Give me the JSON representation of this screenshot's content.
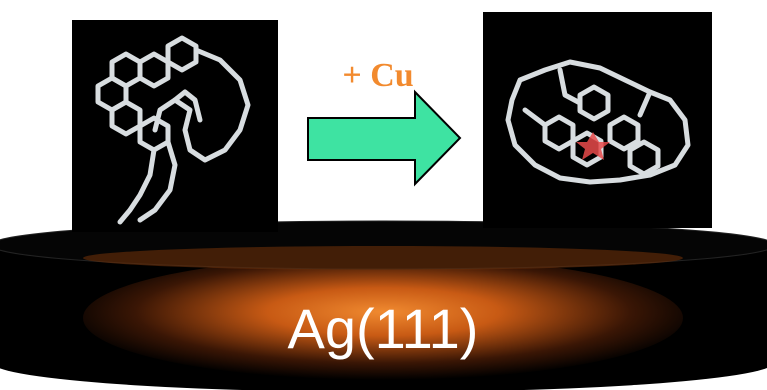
{
  "arrow_label": "+ Cu",
  "substrate_label": "Ag(111)"
}
